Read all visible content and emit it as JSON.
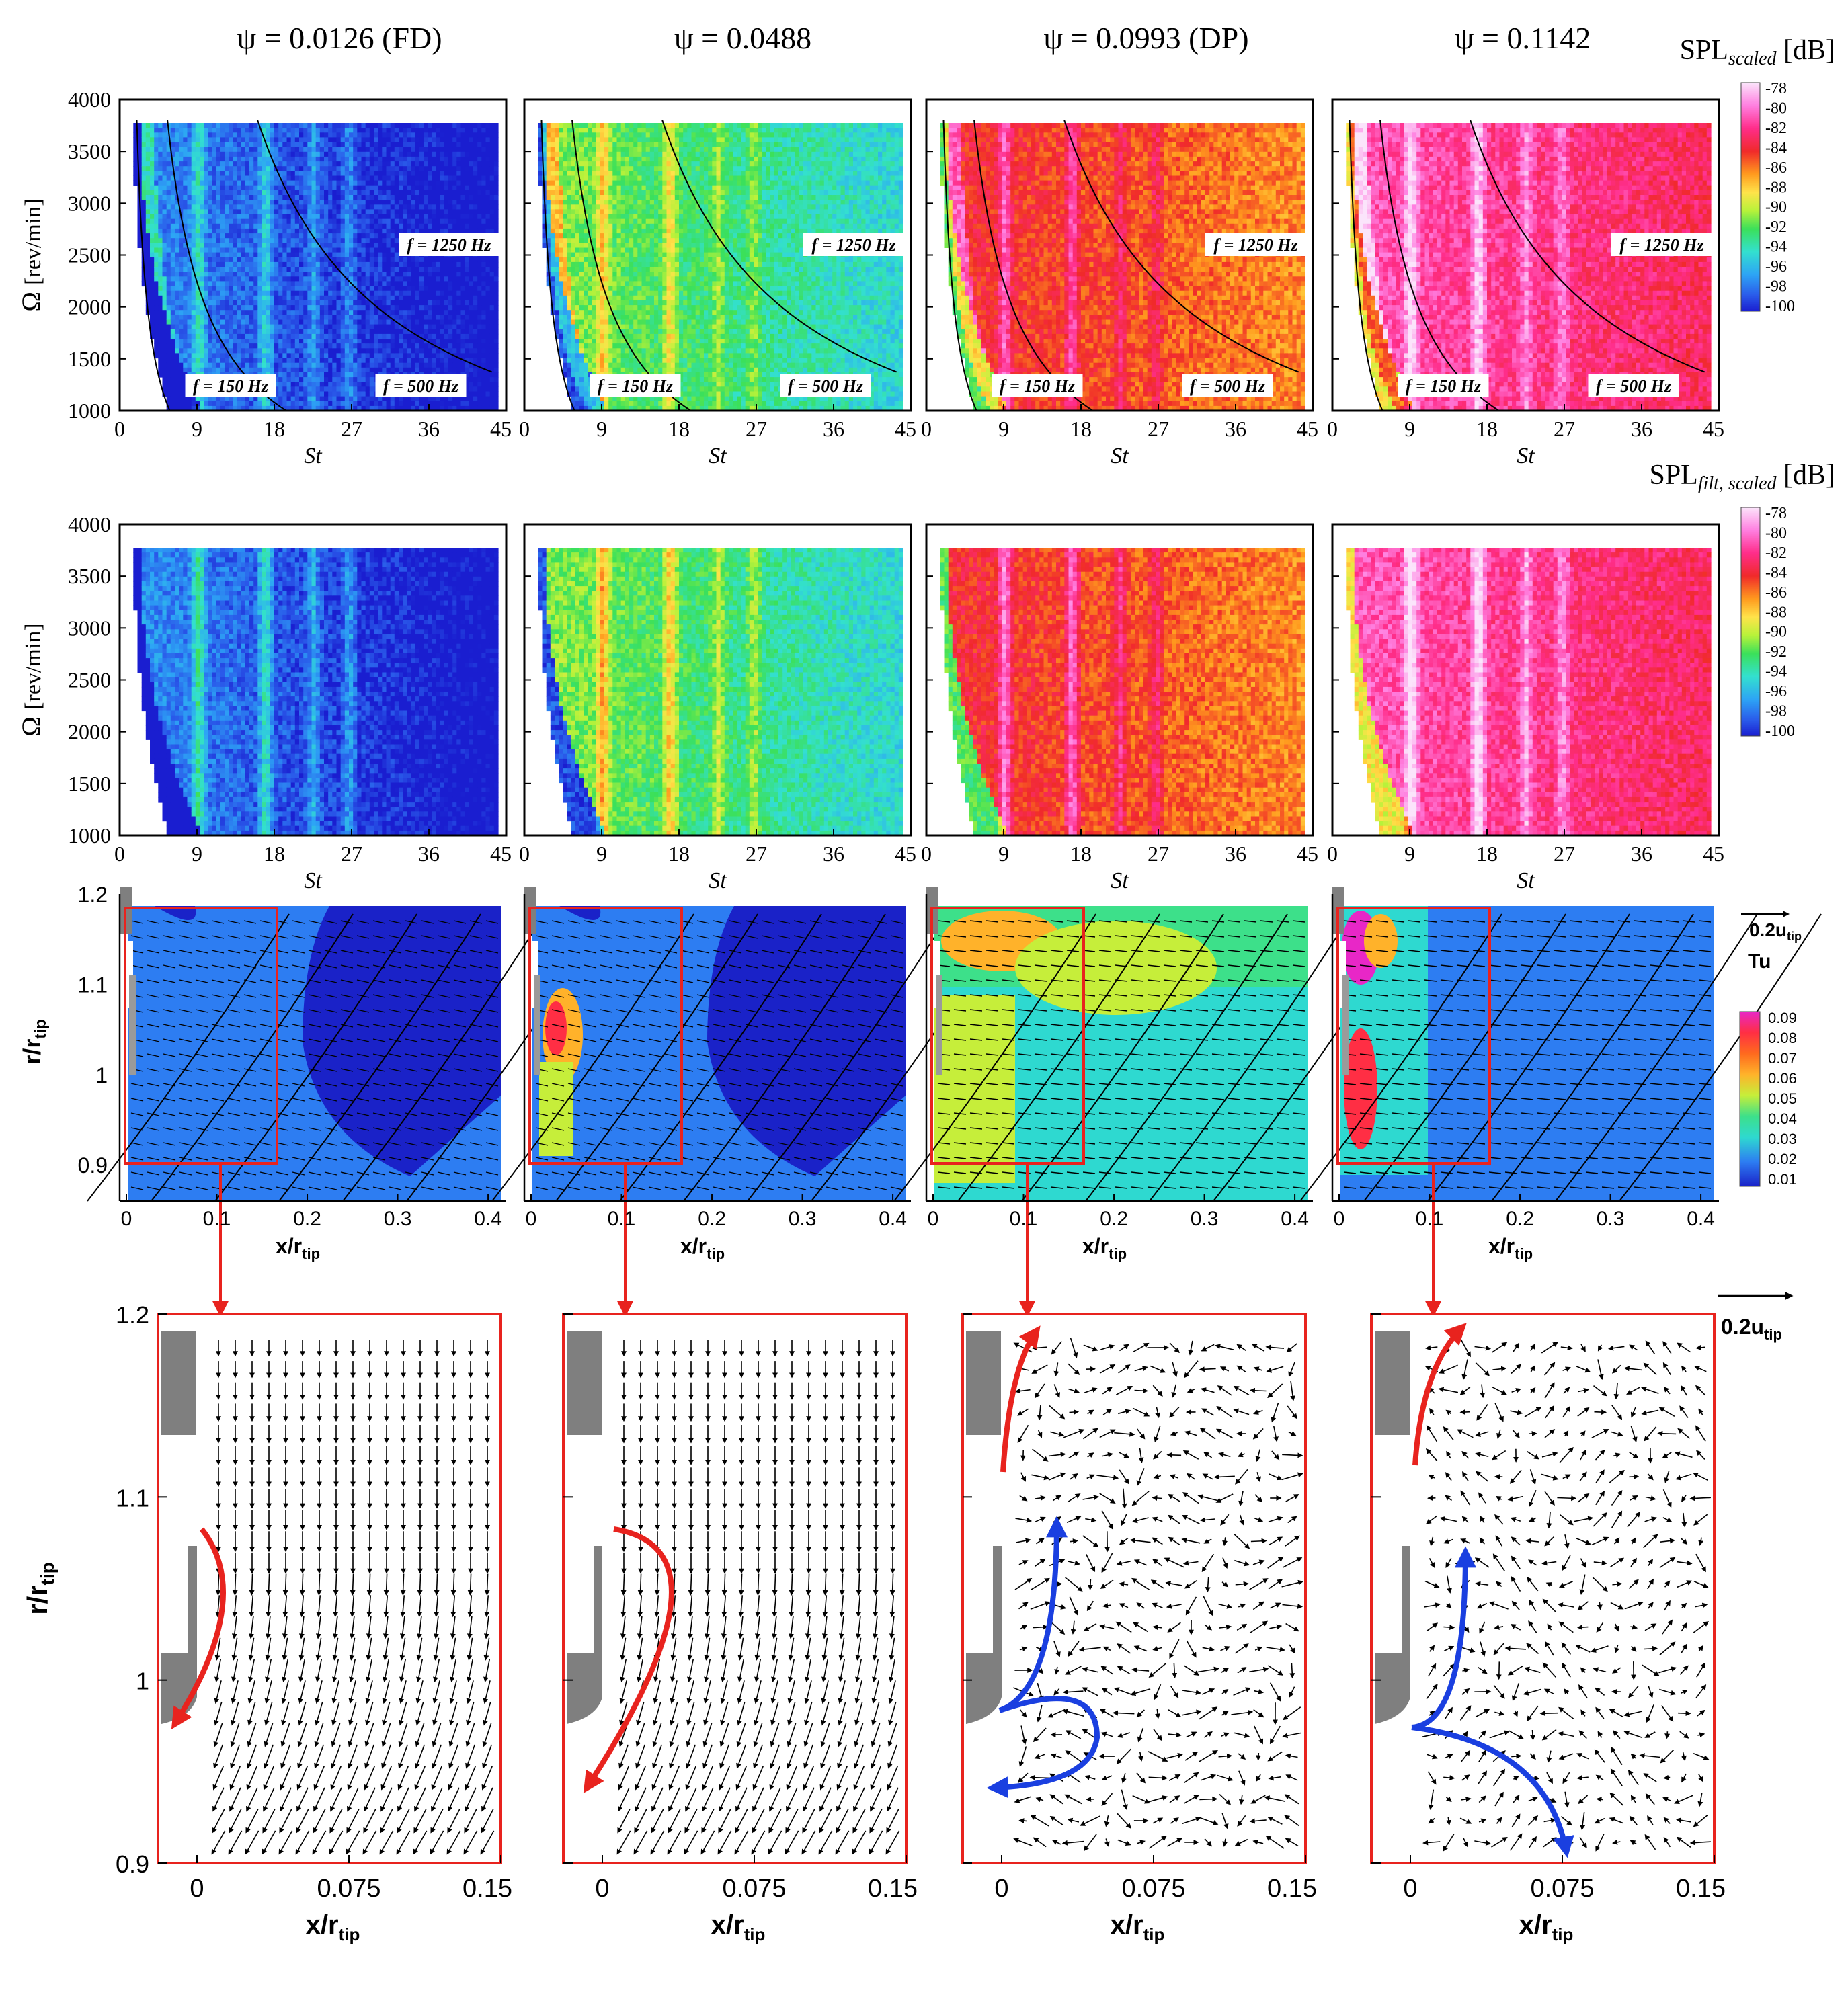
{
  "figure": {
    "column_titles": [
      "ψ = 0.0126 (FD)",
      "ψ = 0.0488",
      "ψ = 0.0993 (DP)",
      "ψ = 0.1142"
    ],
    "row1": {
      "colorbar_title": "SPL",
      "colorbar_subscript": "scaled",
      "colorbar_unit": "[dB]",
      "colorbar_ticks": [
        "-78",
        "-80",
        "-82",
        "-84",
        "-86",
        "-88",
        "-90",
        "-92",
        "-94",
        "-96",
        "-98",
        "-100"
      ],
      "ylabel_main": "Ω",
      "ylabel_unit": "[rev/min]",
      "xlabel": "St",
      "yticks": [
        "4000",
        "3500",
        "3000",
        "2500",
        "2000",
        "1500",
        "1000"
      ],
      "xticks": [
        "0",
        "9",
        "18",
        "27",
        "36",
        "45"
      ],
      "freq_labels": [
        "f = 150 Hz",
        "f = 500 Hz",
        "f = 1250 Hz"
      ]
    },
    "row2": {
      "colorbar_title": "SPL",
      "colorbar_subscript": "filt, scaled",
      "colorbar_unit": "[dB]",
      "colorbar_ticks": [
        "-78",
        "-80",
        "-82",
        "-84",
        "-86",
        "-88",
        "-90",
        "-92",
        "-94",
        "-96",
        "-98",
        "-100"
      ],
      "ylabel_main": "Ω",
      "ylabel_unit": "[rev/min]",
      "xlabel": "St",
      "yticks": [
        "4000",
        "3500",
        "3000",
        "2500",
        "2000",
        "1500",
        "1000"
      ],
      "xticks": [
        "0",
        "9",
        "18",
        "27",
        "36",
        "45"
      ]
    },
    "row3": {
      "ylabel": "r/r",
      "ylabel_sub": "tip",
      "xlabel": "x/r",
      "xlabel_sub": "tip",
      "yticks": [
        "1.2",
        "1.1",
        "1",
        "0.9"
      ],
      "xticks": [
        "0",
        "0.1",
        "0.2",
        "0.3",
        "0.4"
      ],
      "vector_ref": "0.2u",
      "vector_ref_sub": "tip",
      "colorbar_title": "Tu",
      "colorbar_ticks": [
        "0.09",
        "0.08",
        "0.07",
        "0.06",
        "0.05",
        "0.04",
        "0.03",
        "0.02",
        "0.01"
      ]
    },
    "row4": {
      "ylabel": "r/r",
      "ylabel_sub": "tip",
      "xlabel": "x/r",
      "xlabel_sub": "tip",
      "yticks": [
        "1.2",
        "1.1",
        "1",
        "0.9"
      ],
      "xticks": [
        "0",
        "0.075",
        "0.15"
      ],
      "vector_ref": "0.2u",
      "vector_ref_sub": "tip"
    },
    "colors": {
      "highlight_box": "#e8231e",
      "red_arrow": "#e8231e",
      "blue_arrow": "#1a3fe0",
      "hub_gray": "#7f7f7f"
    }
  },
  "chart_data": [
    {
      "type": "heatmap",
      "row": 1,
      "panel": "ψ = 0.0126 (FD)",
      "x_range": [
        0,
        45
      ],
      "y_range": [
        1000,
        4000
      ],
      "z_range": [
        -100,
        -78
      ],
      "frequency_curves_hz": [
        150,
        500,
        1250
      ]
    },
    {
      "type": "heatmap",
      "row": 1,
      "panel": "ψ = 0.0488",
      "x_range": [
        0,
        45
      ],
      "y_range": [
        1000,
        4000
      ],
      "z_range": [
        -100,
        -78
      ],
      "frequency_curves_hz": [
        150,
        500,
        1250
      ]
    },
    {
      "type": "heatmap",
      "row": 1,
      "panel": "ψ = 0.0993 (DP)",
      "x_range": [
        0,
        45
      ],
      "y_range": [
        1000,
        4000
      ],
      "z_range": [
        -100,
        -78
      ],
      "frequency_curves_hz": [
        150,
        500,
        1250
      ]
    },
    {
      "type": "heatmap",
      "row": 1,
      "panel": "ψ = 0.1142",
      "x_range": [
        0,
        45
      ],
      "y_range": [
        1000,
        4000
      ],
      "z_range": [
        -100,
        -78
      ],
      "frequency_curves_hz": [
        150,
        500,
        1250
      ]
    },
    {
      "type": "heatmap",
      "row": 2,
      "panel": "ψ = 0.0126 (FD)",
      "x_range": [
        0,
        45
      ],
      "y_range": [
        1000,
        4000
      ],
      "z_range": [
        -100,
        -78
      ]
    },
    {
      "type": "heatmap",
      "row": 2,
      "panel": "ψ = 0.0488",
      "x_range": [
        0,
        45
      ],
      "y_range": [
        1000,
        4000
      ],
      "z_range": [
        -100,
        -78
      ]
    },
    {
      "type": "heatmap",
      "row": 2,
      "panel": "ψ = 0.0993 (DP)",
      "x_range": [
        0,
        45
      ],
      "y_range": [
        1000,
        4000
      ],
      "z_range": [
        -100,
        -78
      ]
    },
    {
      "type": "heatmap",
      "row": 2,
      "panel": "ψ = 0.1142",
      "x_range": [
        0,
        45
      ],
      "y_range": [
        1000,
        4000
      ],
      "z_range": [
        -100,
        -78
      ]
    },
    {
      "type": "heatmap",
      "row": 3,
      "panel": "ψ = 0.0126 (FD)",
      "x_range": [
        0,
        0.42
      ],
      "y_range": [
        0.86,
        1.18
      ],
      "z_range": [
        0.01,
        0.09
      ],
      "zoom_box": {
        "x": [
          0,
          0.15
        ],
        "y": [
          0.9,
          1.2
        ]
      }
    },
    {
      "type": "heatmap",
      "row": 3,
      "panel": "ψ = 0.0488",
      "x_range": [
        0,
        0.42
      ],
      "y_range": [
        0.86,
        1.18
      ],
      "z_range": [
        0.01,
        0.09
      ],
      "zoom_box": {
        "x": [
          0,
          0.15
        ],
        "y": [
          0.9,
          1.2
        ]
      }
    },
    {
      "type": "heatmap",
      "row": 3,
      "panel": "ψ = 0.0993 (DP)",
      "x_range": [
        0,
        0.42
      ],
      "y_range": [
        0.86,
        1.18
      ],
      "z_range": [
        0.01,
        0.09
      ],
      "zoom_box": {
        "x": [
          0,
          0.15
        ],
        "y": [
          0.9,
          1.2
        ]
      }
    },
    {
      "type": "heatmap",
      "row": 3,
      "panel": "ψ = 0.1142",
      "x_range": [
        0,
        0.42
      ],
      "y_range": [
        0.86,
        1.18
      ],
      "z_range": [
        0.01,
        0.09
      ],
      "zoom_box": {
        "x": [
          0,
          0.15
        ],
        "y": [
          0.9,
          1.2
        ]
      }
    },
    {
      "type": "scatter",
      "row": 4,
      "panel": "ψ = 0.0126 (FD)",
      "x_range": [
        0,
        0.15
      ],
      "y_range": [
        0.9,
        1.2
      ]
    },
    {
      "type": "scatter",
      "row": 4,
      "panel": "ψ = 0.0488",
      "x_range": [
        0,
        0.15
      ],
      "y_range": [
        0.9,
        1.2
      ]
    },
    {
      "type": "scatter",
      "row": 4,
      "panel": "ψ = 0.0993 (DP)",
      "x_range": [
        0,
        0.15
      ],
      "y_range": [
        0.9,
        1.2
      ]
    },
    {
      "type": "scatter",
      "row": 4,
      "panel": "ψ = 0.1142",
      "x_range": [
        0,
        0.15
      ],
      "y_range": [
        0.9,
        1.2
      ]
    }
  ]
}
